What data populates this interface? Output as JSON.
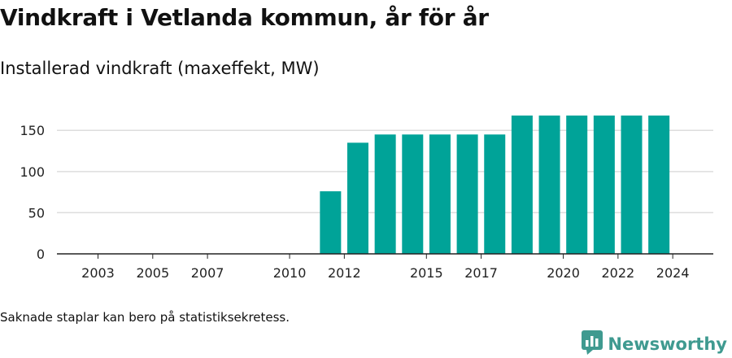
{
  "header": {
    "title": "Vindkraft i Vetlanda kommun, år för år",
    "subtitle": "Installerad vindkraft (maxeffekt, MW)"
  },
  "footnote": "Saknade staplar kan bero på statistiksekretess.",
  "brand": {
    "name": "Newsworthy",
    "icon": "newsworthy-logo-icon",
    "color": "#3f9a90"
  },
  "colors": {
    "bar": "#00a398",
    "grid": "#dddddd",
    "axis": "#222222"
  },
  "chart_data": {
    "type": "bar",
    "categories": [
      "2003",
      "2004",
      "2005",
      "2006",
      "2007",
      "2008",
      "2009",
      "2010",
      "2011",
      "2012",
      "2013",
      "2014",
      "2015",
      "2016",
      "2017",
      "2018",
      "2019",
      "2020",
      "2021",
      "2022",
      "2023",
      "2024"
    ],
    "values": [
      0,
      0,
      0,
      0,
      0,
      0,
      0,
      0,
      0,
      76,
      135,
      145,
      145,
      145,
      145,
      145,
      168,
      168,
      168,
      168,
      168,
      168
    ],
    "x_tick_labels": [
      "2003",
      "2005",
      "2007",
      "2010",
      "2012",
      "2015",
      "2017",
      "2020",
      "2022",
      "2024"
    ],
    "y_ticks": [
      0,
      50,
      100,
      150
    ],
    "ylim": [
      0,
      170
    ],
    "title": "Vindkraft i Vetlanda kommun, år för år",
    "subtitle": "Installerad vindkraft (maxeffekt, MW)",
    "xlabel": "",
    "ylabel": "",
    "grid": true,
    "legend": "none"
  }
}
